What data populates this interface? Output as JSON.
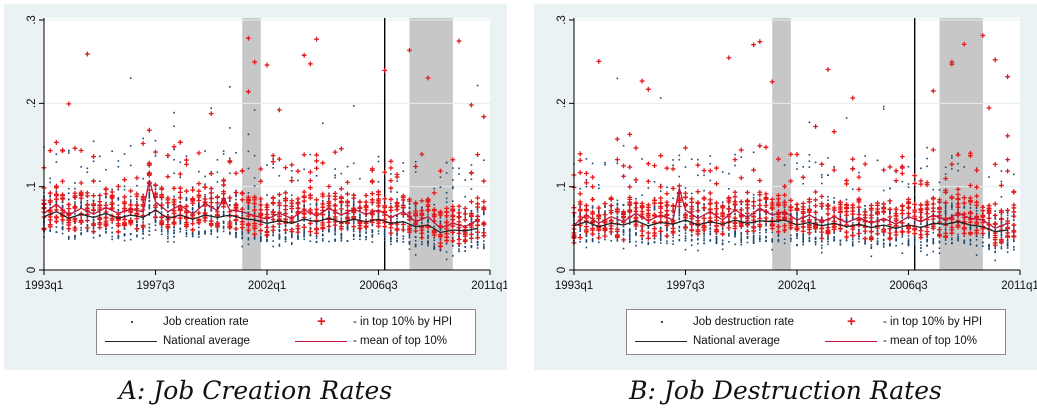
{
  "colors": {
    "panel_bg": "#eaf2f3",
    "scatter": "#1a476f",
    "top10": "#e31a1c",
    "national": "#222222",
    "mean_top10": "#c0143c",
    "shade": "#b9b9b9",
    "vline": "#000000"
  },
  "chart_data": [
    {
      "type": "scatter",
      "caption": "A: Job Creation Rates",
      "x_ticks": [
        "1993q1",
        "1997q3",
        "2002q1",
        "2006q3",
        "2011q1"
      ],
      "y_ticks": [
        "0",
        ".1",
        ".2",
        ".3"
      ],
      "xlim": [
        1993.0,
        2011.0
      ],
      "ylim": [
        0,
        0.3
      ],
      "grid": true,
      "shaded_regions": [
        [
          2001.0,
          2001.75
        ],
        [
          2007.75,
          2009.5
        ]
      ],
      "vertical_lines": [
        2006.75
      ],
      "legend": {
        "placement": "bottom",
        "items": [
          {
            "label": "Job creation rate",
            "symbol": "dot"
          },
          {
            "label": "- in top 10% by HPI",
            "symbol": "plus"
          },
          {
            "label": "National average",
            "symbol": "line-black"
          },
          {
            "label": "- mean of top 10%",
            "symbol": "line-red"
          }
        ]
      },
      "series": [
        {
          "name": "National average",
          "x": [
            1993.0,
            1993.5,
            1994.0,
            1994.5,
            1995.0,
            1995.5,
            1996.0,
            1996.5,
            1997.0,
            1997.5,
            1998.0,
            1998.5,
            1999.0,
            1999.5,
            2000.0,
            2000.5,
            2001.0,
            2001.5,
            2002.0,
            2002.5,
            2003.0,
            2003.5,
            2004.0,
            2004.5,
            2005.0,
            2005.5,
            2006.0,
            2006.5,
            2007.0,
            2007.5,
            2008.0,
            2008.5,
            2009.0,
            2009.5,
            2010.0,
            2010.5
          ],
          "values": [
            0.064,
            0.07,
            0.062,
            0.067,
            0.063,
            0.068,
            0.062,
            0.066,
            0.063,
            0.072,
            0.062,
            0.066,
            0.061,
            0.066,
            0.063,
            0.066,
            0.062,
            0.06,
            0.056,
            0.059,
            0.056,
            0.061,
            0.058,
            0.062,
            0.057,
            0.061,
            0.058,
            0.061,
            0.056,
            0.058,
            0.052,
            0.054,
            0.045,
            0.048,
            0.047,
            0.05
          ]
        },
        {
          "name": "- mean of top 10%",
          "x": [
            1993.0,
            1993.5,
            1994.0,
            1994.5,
            1995.0,
            1995.5,
            1996.0,
            1996.5,
            1997.0,
            1997.25,
            1997.5,
            1998.0,
            1998.5,
            1999.0,
            1999.5,
            2000.0,
            2000.25,
            2000.5,
            2001.0,
            2001.5,
            2002.0,
            2002.5,
            2003.0,
            2003.5,
            2004.0,
            2004.5,
            2005.0,
            2005.5,
            2006.0,
            2006.5,
            2007.0,
            2007.5,
            2008.0,
            2008.5,
            2009.0,
            2009.5,
            2010.0,
            2010.5
          ],
          "values": [
            0.068,
            0.079,
            0.066,
            0.074,
            0.067,
            0.075,
            0.068,
            0.073,
            0.07,
            0.108,
            0.082,
            0.07,
            0.078,
            0.067,
            0.08,
            0.071,
            0.087,
            0.072,
            0.07,
            0.065,
            0.061,
            0.068,
            0.062,
            0.072,
            0.065,
            0.074,
            0.066,
            0.073,
            0.067,
            0.072,
            0.063,
            0.07,
            0.058,
            0.064,
            0.05,
            0.056,
            0.052,
            0.06
          ]
        }
      ]
    },
    {
      "type": "scatter",
      "caption": "B: Job Destruction Rates",
      "x_ticks": [
        "1993q1",
        "1997q3",
        "2002q1",
        "2006q3",
        "2011q1"
      ],
      "y_ticks": [
        "0",
        ".1",
        ".2",
        ".3"
      ],
      "xlim": [
        1993.0,
        2011.0
      ],
      "ylim": [
        0,
        0.3
      ],
      "grid": true,
      "shaded_regions": [
        [
          2001.0,
          2001.75
        ],
        [
          2007.75,
          2009.5
        ]
      ],
      "vertical_lines": [
        2006.75
      ],
      "legend": {
        "placement": "bottom",
        "items": [
          {
            "label": "Job destruction rate",
            "symbol": "dot"
          },
          {
            "label": "- in top 10% by HPI",
            "symbol": "plus"
          },
          {
            "label": "National average",
            "symbol": "line-black"
          },
          {
            "label": "- mean of top 10%",
            "symbol": "line-red"
          }
        ]
      },
      "series": [
        {
          "name": "National average",
          "x": [
            1993.0,
            1993.5,
            1994.0,
            1994.5,
            1995.0,
            1995.5,
            1996.0,
            1996.5,
            1997.0,
            1997.5,
            1998.0,
            1998.5,
            1999.0,
            1999.5,
            2000.0,
            2000.5,
            2001.0,
            2001.5,
            2002.0,
            2002.5,
            2003.0,
            2003.5,
            2004.0,
            2004.5,
            2005.0,
            2005.5,
            2006.0,
            2006.5,
            2007.0,
            2007.5,
            2008.0,
            2008.5,
            2009.0,
            2009.5,
            2010.0,
            2010.5
          ],
          "values": [
            0.053,
            0.058,
            0.052,
            0.056,
            0.054,
            0.059,
            0.053,
            0.057,
            0.055,
            0.06,
            0.054,
            0.058,
            0.055,
            0.06,
            0.056,
            0.059,
            0.058,
            0.06,
            0.054,
            0.057,
            0.053,
            0.056,
            0.052,
            0.055,
            0.051,
            0.054,
            0.05,
            0.054,
            0.051,
            0.056,
            0.055,
            0.058,
            0.054,
            0.052,
            0.046,
            0.048
          ]
        },
        {
          "name": "- mean of top 10%",
          "x": [
            1993.0,
            1993.5,
            1994.0,
            1994.5,
            1995.0,
            1995.5,
            1996.0,
            1996.5,
            1997.0,
            1997.25,
            1997.5,
            1998.0,
            1998.5,
            1999.0,
            1999.5,
            2000.0,
            2000.5,
            2001.0,
            2001.5,
            2002.0,
            2002.5,
            2003.0,
            2003.5,
            2004.0,
            2004.5,
            2005.0,
            2005.5,
            2006.0,
            2006.5,
            2007.0,
            2007.5,
            2008.0,
            2008.5,
            2009.0,
            2009.5,
            2010.0,
            2010.5
          ],
          "values": [
            0.054,
            0.066,
            0.056,
            0.064,
            0.058,
            0.068,
            0.059,
            0.066,
            0.06,
            0.098,
            0.072,
            0.062,
            0.07,
            0.06,
            0.072,
            0.063,
            0.074,
            0.066,
            0.07,
            0.06,
            0.066,
            0.058,
            0.064,
            0.057,
            0.063,
            0.056,
            0.062,
            0.055,
            0.064,
            0.058,
            0.066,
            0.06,
            0.068,
            0.062,
            0.06,
            0.05,
            0.056
          ]
        }
      ]
    }
  ]
}
